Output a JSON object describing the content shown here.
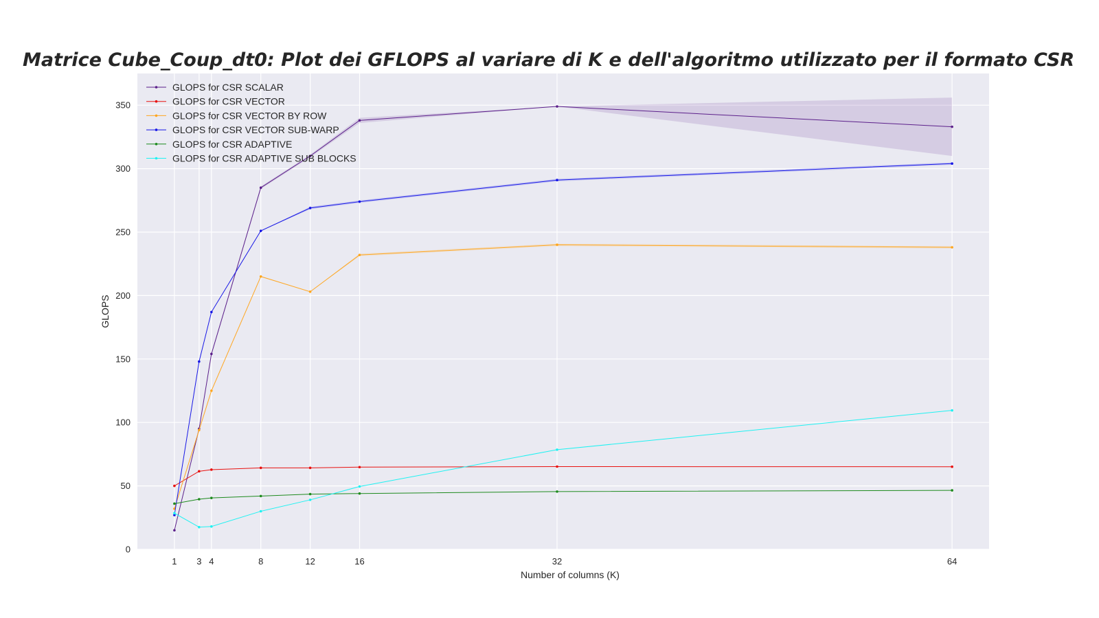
{
  "chart_data": {
    "type": "line",
    "title": "Matrice Cube_Coup_dt0: Plot dei GFLOPS al variare di K e dell'algoritmo utilizzato per il formato CSR",
    "xlabel": "Number of columns (K)",
    "ylabel": "GLOPS",
    "x": [
      1,
      3,
      4,
      8,
      12,
      16,
      32,
      64
    ],
    "x_ticks": [
      "1",
      "3",
      "4",
      "8",
      "12",
      "16",
      "32",
      "64"
    ],
    "xlim": [
      -2,
      67
    ],
    "ylim": [
      0,
      375
    ],
    "y_ticks": [
      0,
      50,
      100,
      150,
      200,
      250,
      300,
      350
    ],
    "grid": true,
    "legend_position": "top-left",
    "background": "#eaeaf2",
    "series": [
      {
        "name": "GLOPS for CSR SCALAR",
        "color": "#5b1f8a",
        "values": [
          15,
          95,
          154,
          285,
          310,
          338,
          349,
          333
        ],
        "band_low": [
          15,
          95,
          153,
          284,
          309,
          336,
          349,
          310
        ],
        "band_high": [
          15,
          95,
          155,
          286,
          311,
          340,
          349,
          356
        ]
      },
      {
        "name": "GLOPS for CSR VECTOR",
        "color": "#e8110f",
        "values": [
          50,
          61.5,
          62.8,
          64.2,
          64.2,
          64.8,
          65.2,
          65.1
        ]
      },
      {
        "name": "GLOPS for CSR VECTOR BY ROW",
        "color": "#ffa61f",
        "values": [
          32,
          94,
          125,
          215,
          203,
          232,
          240,
          238
        ],
        "band_low": [
          32,
          94,
          125,
          215,
          203,
          231,
          239,
          237
        ],
        "band_high": [
          32,
          94,
          125,
          215,
          203,
          233,
          241,
          239
        ]
      },
      {
        "name": "GLOPS for CSR VECTOR SUB-WARP",
        "color": "#1616e6",
        "values": [
          27,
          148,
          187,
          251,
          269,
          274,
          291,
          304
        ],
        "band_low": [
          27,
          148,
          187,
          251,
          268,
          273,
          290,
          303
        ],
        "band_high": [
          27,
          148,
          187,
          251,
          270,
          275,
          292,
          305
        ]
      },
      {
        "name": "GLOPS for CSR ADAPTIVE",
        "color": "#1d8a1d",
        "values": [
          36,
          39.5,
          40.5,
          42,
          43.5,
          44,
          45.5,
          46.5
        ]
      },
      {
        "name": "GLOPS for CSR ADAPTIVE SUB BLOCKS",
        "color": "#1ef2f2",
        "values": [
          28.5,
          17.5,
          18,
          30,
          39,
          49.5,
          78.5,
          109.5
        ]
      }
    ]
  }
}
